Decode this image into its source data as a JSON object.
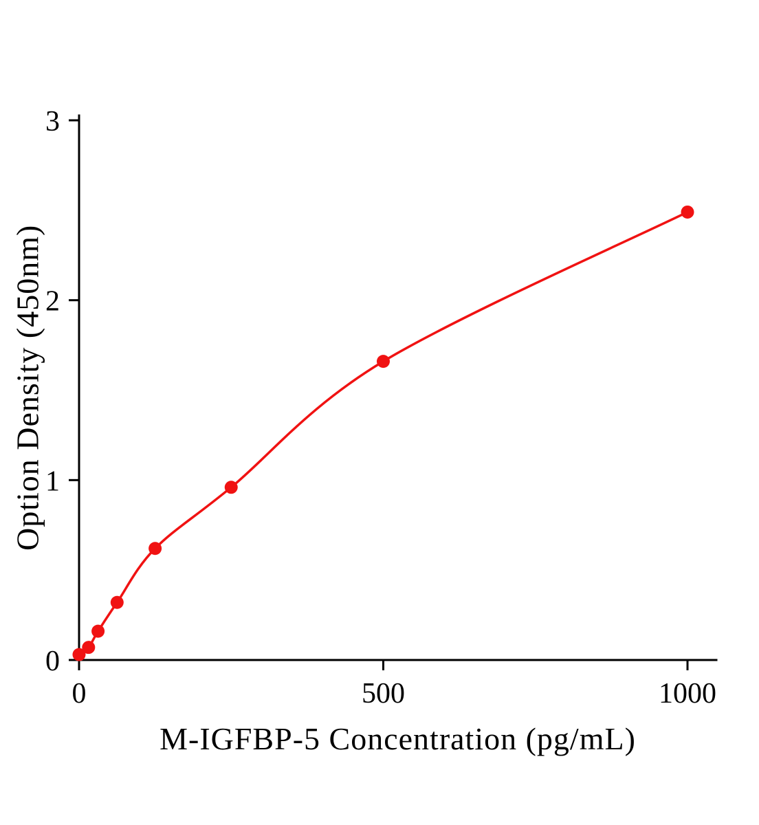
{
  "chart_data": {
    "type": "line",
    "title": "",
    "xlabel": "M-IGFBP-5 Concentration (pg/mL)",
    "ylabel": "Option Density (450nm)",
    "x": [
      0,
      15.6,
      31.2,
      62.5,
      125,
      250,
      500,
      1000
    ],
    "y": [
      0.03,
      0.07,
      0.16,
      0.32,
      0.62,
      0.96,
      1.66,
      2.49
    ],
    "x_ticks": [
      0,
      500,
      1000
    ],
    "y_ticks": [
      0,
      1,
      2,
      3
    ],
    "xlim": [
      0,
      1048
    ],
    "ylim": [
      0,
      3
    ],
    "grid": false,
    "legend": null,
    "marker": "circle",
    "series_color": "#f01212",
    "axis_color": "#000000",
    "background_color": "#ffffff"
  }
}
